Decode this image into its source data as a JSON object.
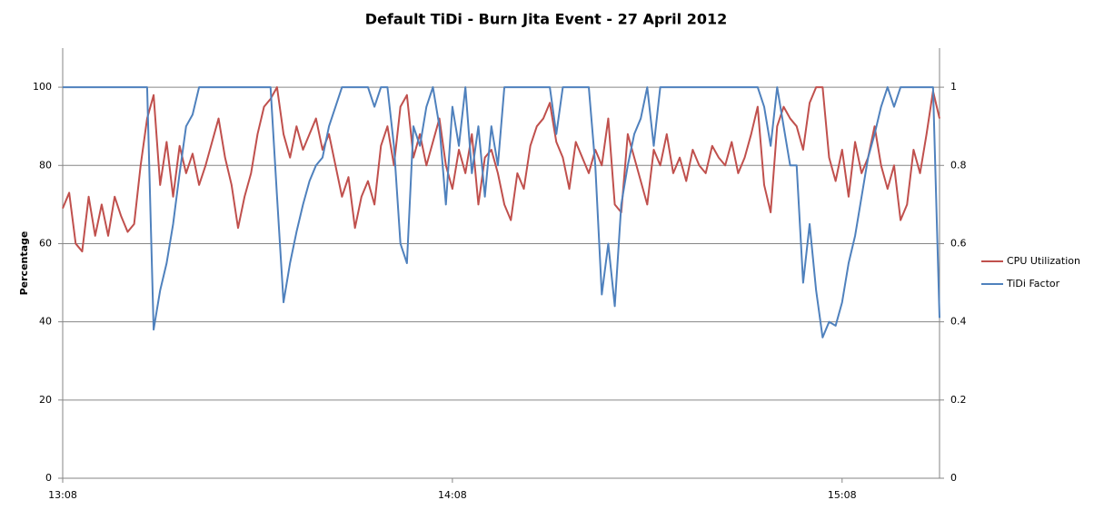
{
  "chart_data": {
    "type": "line",
    "title": "Default TiDi - Burn Jita Event - 27 April 2012",
    "y_label": "Percentage",
    "categories": [
      "13:08",
      null,
      null,
      null,
      null,
      null,
      null,
      null,
      null,
      null,
      null,
      null,
      null,
      null,
      null,
      null,
      null,
      null,
      null,
      null,
      null,
      null,
      null,
      null,
      null,
      null,
      null,
      null,
      null,
      null,
      null,
      null,
      null,
      null,
      null,
      null,
      null,
      null,
      null,
      null,
      null,
      null,
      null,
      null,
      null,
      null,
      null,
      null,
      null,
      null,
      null,
      null,
      null,
      null,
      null,
      null,
      null,
      null,
      null,
      null,
      "14:08",
      null,
      null,
      null,
      null,
      null,
      null,
      null,
      null,
      null,
      null,
      null,
      null,
      null,
      null,
      null,
      null,
      null,
      null,
      null,
      null,
      null,
      null,
      null,
      null,
      null,
      null,
      null,
      null,
      null,
      null,
      null,
      null,
      null,
      null,
      null,
      null,
      null,
      null,
      null,
      null,
      null,
      null,
      null,
      null,
      null,
      null,
      null,
      null,
      null,
      null,
      null,
      null,
      null,
      null,
      null,
      null,
      null,
      null,
      null,
      "15:08",
      null,
      null,
      null,
      null,
      null,
      null,
      null,
      null,
      null,
      null,
      null,
      null,
      null,
      null,
      null
    ],
    "series": [
      {
        "name": "CPU Utilization",
        "color": "#c0504d",
        "values": [
          69,
          73,
          60,
          58,
          72,
          62,
          70,
          62,
          72,
          67,
          63,
          65,
          80,
          92,
          98,
          75,
          86,
          72,
          85,
          78,
          83,
          75,
          80,
          86,
          92,
          82,
          75,
          64,
          72,
          78,
          88,
          95,
          97,
          100,
          88,
          82,
          90,
          84,
          88,
          92,
          84,
          88,
          80,
          72,
          77,
          64,
          72,
          76,
          70,
          85,
          90,
          80,
          95,
          98,
          82,
          88,
          80,
          86,
          92,
          80,
          74,
          84,
          78,
          88,
          70,
          82,
          84,
          78,
          70,
          66,
          78,
          74,
          85,
          90,
          92,
          96,
          86,
          82,
          74,
          86,
          82,
          78,
          84,
          80,
          92,
          70,
          68,
          88,
          82,
          76,
          70,
          84,
          80,
          88,
          78,
          82,
          76,
          84,
          80,
          78,
          85,
          82,
          80,
          86,
          78,
          82,
          88,
          95,
          75,
          68,
          90,
          95,
          92,
          90,
          84,
          96,
          100,
          100,
          82,
          76,
          84,
          72,
          86,
          78,
          82,
          90,
          80,
          74,
          80,
          66,
          70,
          84,
          78,
          88,
          99,
          92
        ]
      },
      {
        "name": "TiDi Factor",
        "color": "#4f81bd",
        "axis": "y2",
        "values": [
          1,
          1,
          1,
          1,
          1,
          1,
          1,
          1,
          1,
          1,
          1,
          1,
          1,
          1,
          0.38,
          0.48,
          0.55,
          0.65,
          0.78,
          0.9,
          0.93,
          1,
          1,
          1,
          1,
          1,
          1,
          1,
          1,
          1,
          1,
          1,
          1,
          0.72,
          0.45,
          0.55,
          0.63,
          0.7,
          0.76,
          0.8,
          0.82,
          0.9,
          0.95,
          1,
          1,
          1,
          1,
          1,
          0.95,
          1,
          1,
          0.85,
          0.6,
          0.55,
          0.9,
          0.85,
          0.95,
          1,
          0.9,
          0.7,
          0.95,
          0.85,
          1,
          0.78,
          0.9,
          0.72,
          0.9,
          0.8,
          1,
          1,
          1,
          1,
          1,
          1,
          1,
          1,
          0.88,
          1,
          1,
          1,
          1,
          1,
          0.8,
          0.47,
          0.6,
          0.44,
          0.7,
          0.8,
          0.88,
          0.92,
          1,
          0.85,
          1,
          1,
          1,
          1,
          1,
          1,
          1,
          1,
          1,
          1,
          1,
          1,
          1,
          1,
          1,
          1,
          0.95,
          0.85,
          1,
          0.9,
          0.8,
          0.8,
          0.5,
          0.65,
          0.48,
          0.36,
          0.4,
          0.39,
          0.45,
          0.55,
          0.62,
          0.72,
          0.82,
          0.88,
          0.95,
          1,
          0.95,
          1,
          1,
          1,
          1,
          1,
          1,
          0.41
        ]
      }
    ],
    "ylim": [
      0,
      110
    ],
    "yticks": [
      0,
      20,
      40,
      60,
      80,
      100
    ],
    "y2lim": [
      0,
      1.1
    ],
    "y2ticks": [
      0,
      0.2,
      0.4,
      0.6,
      0.8,
      1
    ],
    "grid": true,
    "legend": "right"
  }
}
